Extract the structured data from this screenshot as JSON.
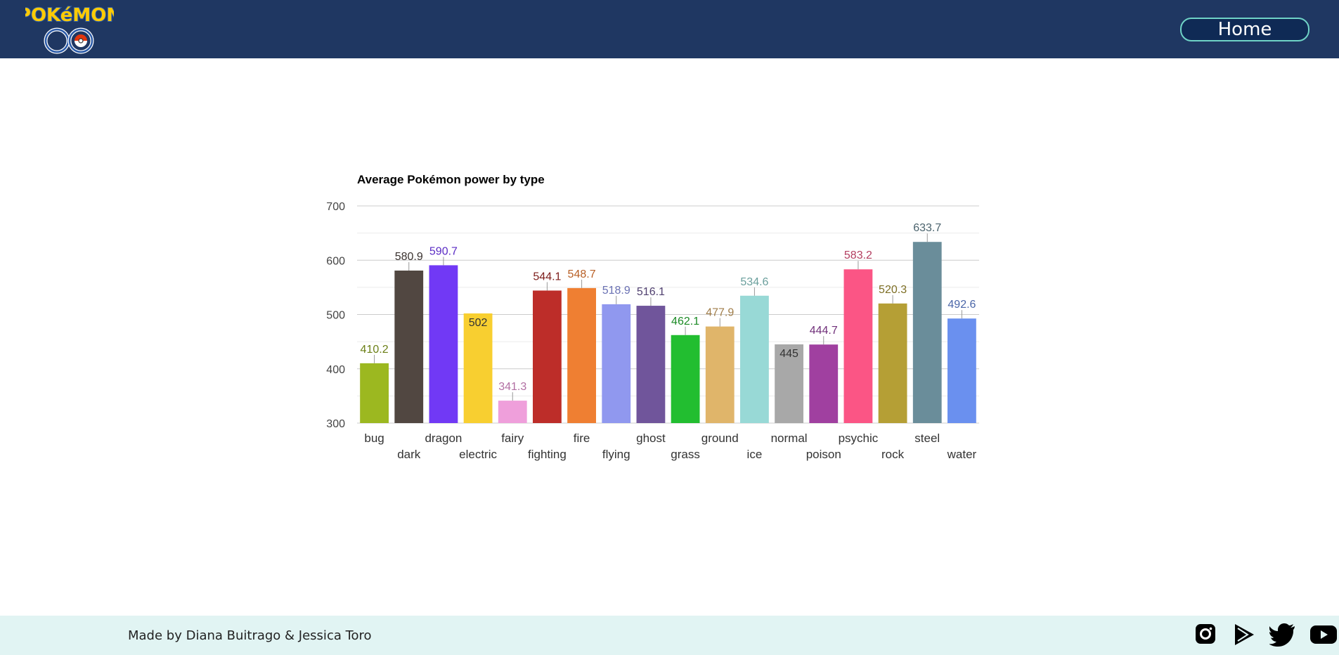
{
  "header": {
    "logo_text": "Pokémon GO",
    "home_label": "Home",
    "colors": {
      "bar": "#1f3762",
      "button_border": "#6fd3c6"
    }
  },
  "chart_data": {
    "type": "bar",
    "title": "Average Pokémon power by type",
    "xlabel": "",
    "ylabel": "",
    "ylim": [
      300,
      700
    ],
    "yticks": [
      300,
      400,
      500,
      600,
      700
    ],
    "grid": true,
    "categories": [
      "bug",
      "dark",
      "dragon",
      "electric",
      "fairy",
      "fighting",
      "fire",
      "flying",
      "ghost",
      "grass",
      "ground",
      "ice",
      "normal",
      "poison",
      "psychic",
      "rock",
      "steel",
      "water"
    ],
    "values": [
      410.2,
      580.9,
      590.7,
      502,
      341.3,
      544.1,
      548.7,
      518.9,
      516.1,
      462.1,
      477.9,
      534.6,
      445,
      444.7,
      583.2,
      520.3,
      633.7,
      492.6
    ],
    "value_labels": [
      "410.2",
      "580.9",
      "590.7",
      "502",
      "341.3",
      "544.1",
      "548.7",
      "518.9",
      "516.1",
      "462.1",
      "477.9",
      "534.6",
      "445",
      "444.7",
      "583.2",
      "520.3",
      "633.7",
      "492.6"
    ],
    "colors": [
      "#9cb820",
      "#514741",
      "#7139f5",
      "#f8cf30",
      "#ef9fdb",
      "#bd2d29",
      "#ef7f32",
      "#9098ef",
      "#70559b",
      "#22be30",
      "#e0b56a",
      "#98d9d6",
      "#a8a8a8",
      "#a040a0",
      "#fb5585",
      "#b59f35",
      "#6a8d9a",
      "#6a90ef"
    ],
    "label_colors": [
      "#6b7f16",
      "#3b3330",
      "#5a2bc4",
      "#333333",
      "#b26fa3",
      "#7d1d1b",
      "#b85f25",
      "#6a71b3",
      "#504070",
      "#1a8a24",
      "#a07d49",
      "#6a9f9c",
      "#333333",
      "#70307a",
      "#b33e60",
      "#7e6f25",
      "#4b636d",
      "#4b66a8"
    ],
    "inside_label": [
      false,
      false,
      false,
      true,
      false,
      false,
      false,
      false,
      false,
      false,
      false,
      false,
      true,
      false,
      false,
      false,
      false,
      false
    ]
  },
  "footer": {
    "credits": "Made by Diana Buitrago & Jessica Toro",
    "social_icons": [
      "instagram-icon",
      "google-play-icon",
      "twitter-icon",
      "youtube-icon"
    ]
  }
}
